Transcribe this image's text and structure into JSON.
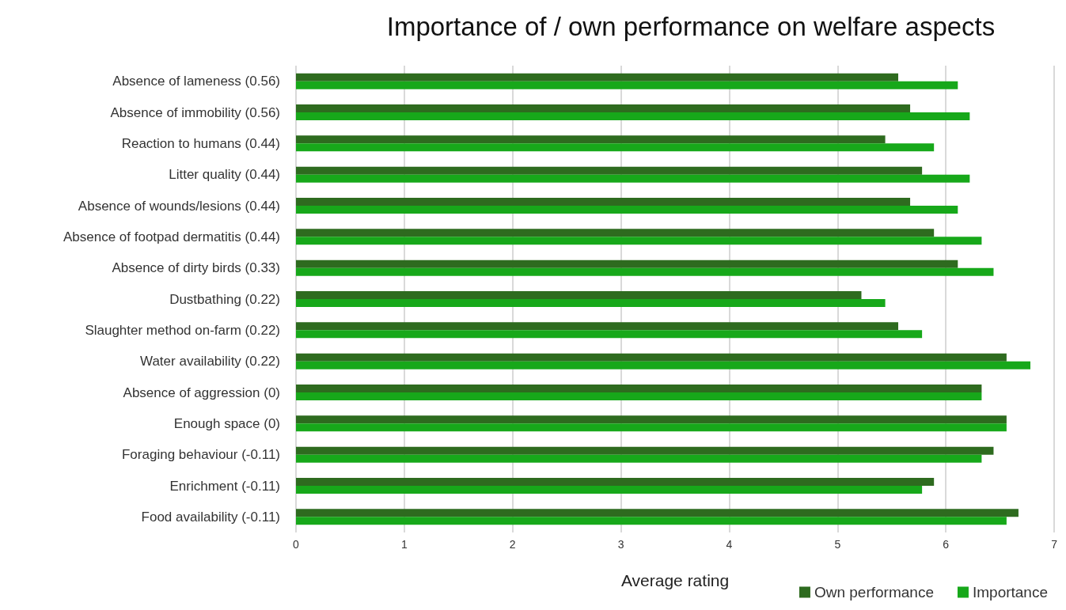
{
  "chart_data": {
    "type": "bar",
    "orientation": "horizontal",
    "title": "Importance of / own performance on welfare aspects",
    "xlabel": "Average rating",
    "categories": [
      "Absence of lameness (0.56)",
      "Absence of immobility (0.56)",
      "Reaction to humans (0.44)",
      "Litter quality (0.44)",
      "Absence of wounds/lesions (0.44)",
      "Absence of footpad dermatitis (0.44)",
      "Absence of dirty birds (0.33)",
      "Dustbathing (0.22)",
      "Slaughter method on-farm (0.22)",
      "Water availability (0.22)",
      "Absence of aggression (0)",
      "Enough space (0)",
      "Foraging behaviour (-0.11)",
      "Enrichment (-0.11)",
      "Food availability (-0.11)"
    ],
    "series": [
      {
        "name": "Own performance",
        "color": "#2e6b1f",
        "values": [
          5.56,
          5.67,
          5.44,
          5.78,
          5.67,
          5.89,
          6.11,
          5.22,
          5.56,
          6.56,
          6.33,
          6.56,
          6.44,
          5.89,
          6.67
        ]
      },
      {
        "name": "Importance",
        "color": "#17a81a",
        "values": [
          6.11,
          6.22,
          5.89,
          6.22,
          6.11,
          6.33,
          6.44,
          5.44,
          5.78,
          6.78,
          6.33,
          6.56,
          6.33,
          5.78,
          6.56
        ]
      }
    ],
    "xlim": [
      0,
      7
    ],
    "xticks": [
      0,
      1,
      2,
      3,
      4,
      5,
      6,
      7
    ],
    "grid": "x",
    "legend": "bottom right"
  }
}
